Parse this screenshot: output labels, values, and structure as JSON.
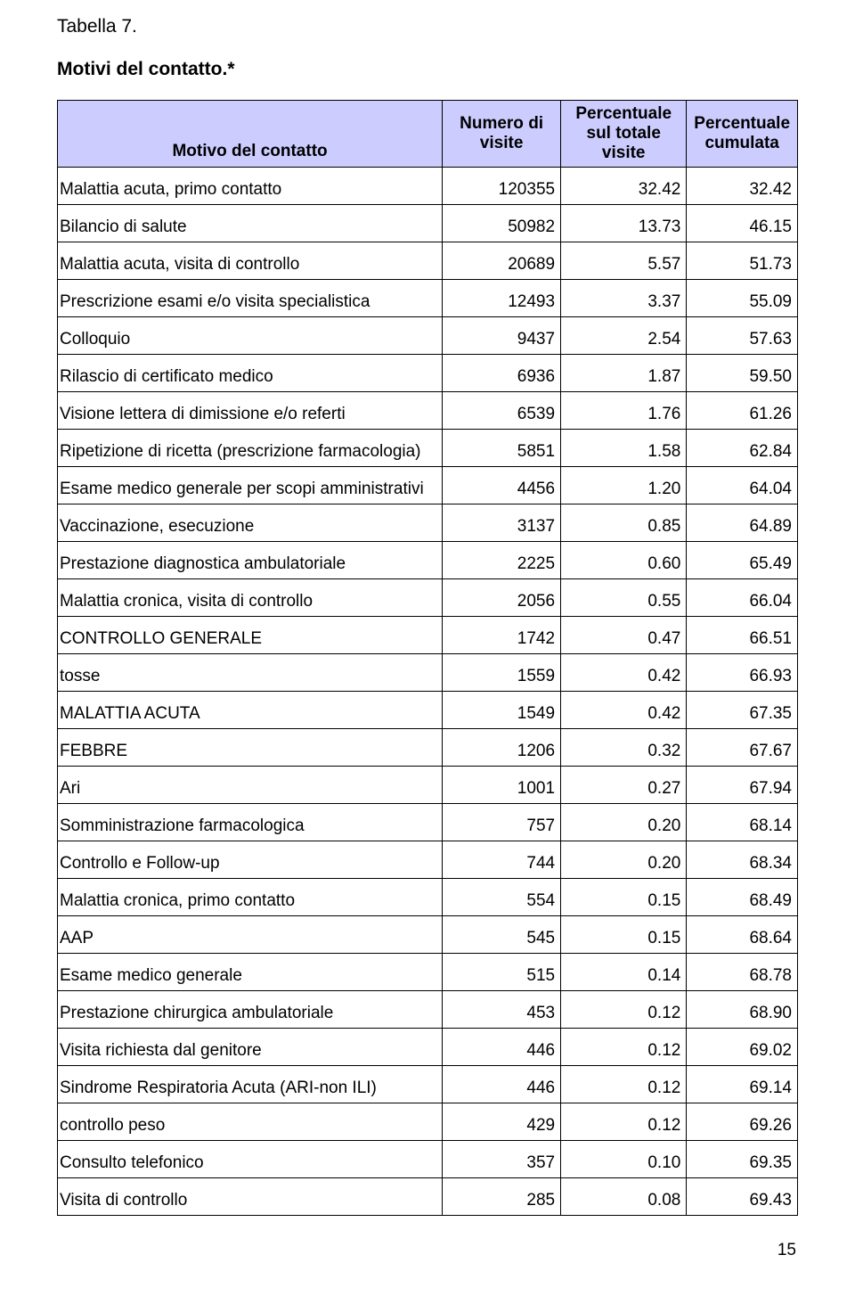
{
  "heading": {
    "table_label": "Tabella 7.",
    "title": "Motivi del contatto.*"
  },
  "table": {
    "columns": {
      "c0": {
        "header": "Motivo del contatto",
        "width_pct": 52
      },
      "c1": {
        "header": "Numero di visite",
        "width_pct": 16
      },
      "c2": {
        "header": "Percentuale sul totale visite",
        "width_pct": 17
      },
      "c3": {
        "header": "Percentuale cumulata",
        "width_pct": 15
      }
    },
    "header_bg": "#ccccff",
    "border_color": "#000000",
    "rows": [
      {
        "label": "Malattia acuta, primo contatto",
        "n": "120355",
        "pct": "32.42",
        "cum": "32.42"
      },
      {
        "label": "Bilancio di salute",
        "n": "50982",
        "pct": "13.73",
        "cum": "46.15"
      },
      {
        "label": "Malattia acuta, visita di controllo",
        "n": "20689",
        "pct": "5.57",
        "cum": "51.73"
      },
      {
        "label": "Prescrizione esami e/o visita specialistica",
        "n": "12493",
        "pct": "3.37",
        "cum": "55.09"
      },
      {
        "label": "Colloquio",
        "n": "9437",
        "pct": "2.54",
        "cum": "57.63"
      },
      {
        "label": "Rilascio di certificato medico",
        "n": "6936",
        "pct": "1.87",
        "cum": "59.50"
      },
      {
        "label": "Visione lettera di dimissione e/o referti",
        "n": "6539",
        "pct": "1.76",
        "cum": "61.26"
      },
      {
        "label": "Ripetizione di ricetta (prescrizione farmacologia)",
        "n": "5851",
        "pct": "1.58",
        "cum": "62.84"
      },
      {
        "label": "Esame medico generale per scopi amministrativi",
        "n": "4456",
        "pct": "1.20",
        "cum": "64.04"
      },
      {
        "label": "Vaccinazione, esecuzione",
        "n": "3137",
        "pct": "0.85",
        "cum": "64.89"
      },
      {
        "label": "Prestazione diagnostica ambulatoriale",
        "n": "2225",
        "pct": "0.60",
        "cum": "65.49"
      },
      {
        "label": "Malattia cronica, visita di controllo",
        "n": "2056",
        "pct": "0.55",
        "cum": "66.04"
      },
      {
        "label": "CONTROLLO GENERALE",
        "n": "1742",
        "pct": "0.47",
        "cum": "66.51"
      },
      {
        "label": "tosse",
        "n": "1559",
        "pct": "0.42",
        "cum": "66.93"
      },
      {
        "label": "MALATTIA ACUTA",
        "n": "1549",
        "pct": "0.42",
        "cum": "67.35"
      },
      {
        "label": "FEBBRE",
        "n": "1206",
        "pct": "0.32",
        "cum": "67.67"
      },
      {
        "label": "Ari",
        "n": "1001",
        "pct": "0.27",
        "cum": "67.94"
      },
      {
        "label": "Somministrazione farmacologica",
        "n": "757",
        "pct": "0.20",
        "cum": "68.14"
      },
      {
        "label": "Controllo e Follow-up",
        "n": "744",
        "pct": "0.20",
        "cum": "68.34"
      },
      {
        "label": "Malattia cronica, primo contatto",
        "n": "554",
        "pct": "0.15",
        "cum": "68.49"
      },
      {
        "label": "AAP",
        "n": "545",
        "pct": "0.15",
        "cum": "68.64"
      },
      {
        "label": "Esame medico generale",
        "n": "515",
        "pct": "0.14",
        "cum": "68.78"
      },
      {
        "label": "Prestazione chirurgica ambulatoriale",
        "n": "453",
        "pct": "0.12",
        "cum": "68.90"
      },
      {
        "label": "Visita richiesta dal genitore",
        "n": "446",
        "pct": "0.12",
        "cum": "69.02"
      },
      {
        "label": "Sindrome Respiratoria Acuta (ARI-non ILI)",
        "n": "446",
        "pct": "0.12",
        "cum": "69.14"
      },
      {
        "label": "controllo peso",
        "n": "429",
        "pct": "0.12",
        "cum": "69.26"
      },
      {
        "label": "Consulto telefonico",
        "n": "357",
        "pct": "0.10",
        "cum": "69.35"
      },
      {
        "label": "Visita di controllo",
        "n": "285",
        "pct": "0.08",
        "cum": "69.43"
      }
    ]
  },
  "page_number": "15"
}
